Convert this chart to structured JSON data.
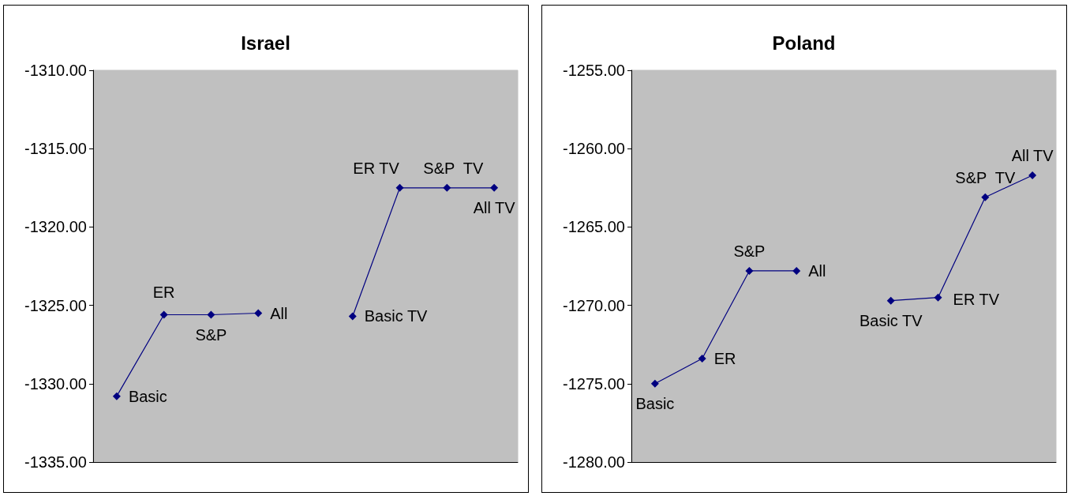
{
  "chart_data": [
    {
      "type": "line",
      "title": "Israel",
      "categories": [
        null,
        null,
        null,
        null,
        null,
        null,
        null,
        null,
        null
      ],
      "series": [
        {
          "color": "#000080",
          "values": [
            -1330.8,
            -1325.6,
            -1325.6,
            -1325.5,
            null,
            -1325.7,
            -1317.5,
            -1317.5,
            -1317.5
          ],
          "value_labels": [
            "Basic",
            "ER",
            "S&P",
            "All",
            null,
            "Basic TV",
            "ER TV",
            "S&P  TV",
            "All TV"
          ]
        }
      ],
      "ylim": [
        -1335,
        -1310
      ],
      "yticks": [
        {
          "value": -1335,
          "label": "-1335.00"
        },
        {
          "value": -1330,
          "label": "-1330.00"
        },
        {
          "value": -1325,
          "label": "-1325.00"
        },
        {
          "value": -1320,
          "label": "-1320.00"
        },
        {
          "value": -1315,
          "label": "-1315.00"
        },
        {
          "value": -1310,
          "label": "-1310.00"
        }
      ],
      "grid": false,
      "marker": "diamond",
      "line_style": "solid",
      "tick_labels": "y"
    },
    {
      "type": "line",
      "title": "Poland",
      "categories": [
        null,
        null,
        null,
        null,
        null,
        null,
        null,
        null,
        null
      ],
      "series": [
        {
          "color": "#000080",
          "values": [
            -1275.0,
            -1273.4,
            -1267.8,
            -1267.8,
            null,
            -1269.7,
            -1269.5,
            -1263.1,
            -1261.7
          ],
          "value_labels": [
            "Basic",
            "ER",
            "S&P",
            "All",
            null,
            "Basic TV",
            "ER TV",
            "S&P  TV",
            "All TV"
          ]
        }
      ],
      "ylim": [
        -1280,
        -1255
      ],
      "yticks": [
        {
          "value": -1280,
          "label": "-1280.00"
        },
        {
          "value": -1275,
          "label": "-1275.00"
        },
        {
          "value": -1270,
          "label": "-1270.00"
        },
        {
          "value": -1265,
          "label": "-1265.00"
        },
        {
          "value": -1260,
          "label": "-1260.00"
        },
        {
          "value": -1255,
          "label": "-1255.00"
        }
      ],
      "grid": false,
      "marker": "diamond",
      "line_style": "solid",
      "tick_labels": "y"
    }
  ]
}
